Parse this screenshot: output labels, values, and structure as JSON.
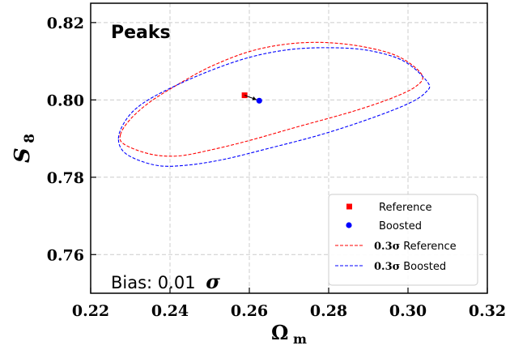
{
  "chart_data": {
    "type": "scatter",
    "title": "Peaks",
    "xlabel": "Ω",
    "xlabel_sub": "m",
    "ylabel": "S",
    "ylabel_sub": "8",
    "xlim": [
      0.22,
      0.32
    ],
    "ylim": [
      0.75,
      0.825
    ],
    "xticks": [
      "0.22",
      "0.24",
      "0.26",
      "0.28",
      "0.30",
      "0.32"
    ],
    "yticks": [
      "0.76",
      "0.78",
      "0.80",
      "0.82"
    ],
    "grid": true,
    "legend_position": "lower-right",
    "annotation": {
      "text": "Bias: 0.01",
      "symbol": "σ"
    },
    "series": [
      {
        "name": "Reference",
        "kind": "point",
        "marker": "square",
        "color": "#ff0000",
        "x": 0.2588,
        "y": 0.8012
      },
      {
        "name": "Boosted",
        "kind": "point",
        "marker": "circle",
        "color": "#0000ff",
        "x": 0.2625,
        "y": 0.7998
      },
      {
        "name": "Reference",
        "prefix": "0.3σ",
        "kind": "contour",
        "style": "dashed",
        "color": "#ff0000",
        "points": [
          [
            0.2275,
            0.791
          ],
          [
            0.23,
            0.795
          ],
          [
            0.235,
            0.7995
          ],
          [
            0.242,
            0.804
          ],
          [
            0.25,
            0.8085
          ],
          [
            0.26,
            0.8125
          ],
          [
            0.27,
            0.8145
          ],
          [
            0.28,
            0.8148
          ],
          [
            0.29,
            0.8135
          ],
          [
            0.298,
            0.811
          ],
          [
            0.3035,
            0.8065
          ],
          [
            0.302,
            0.8035
          ],
          [
            0.296,
            0.8005
          ],
          [
            0.286,
            0.797
          ],
          [
            0.272,
            0.793
          ],
          [
            0.26,
            0.7895
          ],
          [
            0.25,
            0.787
          ],
          [
            0.242,
            0.7855
          ],
          [
            0.235,
            0.786
          ],
          [
            0.2285,
            0.7885
          ],
          [
            0.2275,
            0.791
          ]
        ]
      },
      {
        "name": "Boosted",
        "prefix": "0.3σ",
        "kind": "contour",
        "style": "dashed",
        "color": "#0000ff",
        "points": [
          [
            0.227,
            0.79
          ],
          [
            0.229,
            0.795
          ],
          [
            0.233,
            0.799
          ],
          [
            0.24,
            0.803
          ],
          [
            0.25,
            0.8075
          ],
          [
            0.26,
            0.811
          ],
          [
            0.27,
            0.813
          ],
          [
            0.28,
            0.8135
          ],
          [
            0.29,
            0.8128
          ],
          [
            0.299,
            0.81
          ],
          [
            0.305,
            0.8045
          ],
          [
            0.3045,
            0.802
          ],
          [
            0.3,
            0.799
          ],
          [
            0.29,
            0.795
          ],
          [
            0.278,
            0.791
          ],
          [
            0.265,
            0.7875
          ],
          [
            0.253,
            0.7845
          ],
          [
            0.243,
            0.783
          ],
          [
            0.236,
            0.7832
          ],
          [
            0.229,
            0.786
          ],
          [
            0.227,
            0.79
          ]
        ]
      }
    ]
  }
}
